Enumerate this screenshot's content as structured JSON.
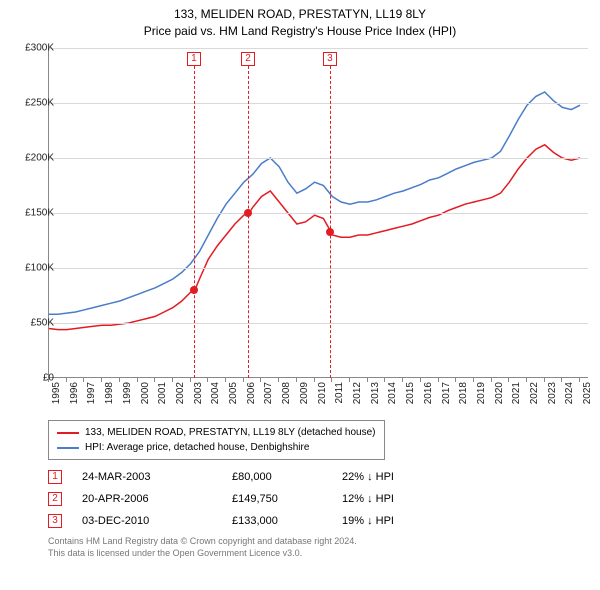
{
  "title": "133, MELIDEN ROAD, PRESTATYN, LL19 8LY",
  "subtitle": "Price paid vs. HM Land Registry's House Price Index (HPI)",
  "chart": {
    "type": "line",
    "background_color": "#ffffff",
    "grid_color": "#d9d9d9",
    "axis_color": "#888888",
    "ylim": [
      0,
      300000
    ],
    "ytick_step": 50000,
    "ytick_labels": [
      "£0",
      "£50K",
      "£100K",
      "£150K",
      "£200K",
      "£250K",
      "£300K"
    ],
    "xlim": [
      1995,
      2025.5
    ],
    "xtick_labels": [
      "1995",
      "1996",
      "1997",
      "1998",
      "1999",
      "2000",
      "2001",
      "2002",
      "2003",
      "2004",
      "2005",
      "2006",
      "2007",
      "2008",
      "2009",
      "2010",
      "2011",
      "2012",
      "2013",
      "2014",
      "2015",
      "2016",
      "2017",
      "2018",
      "2019",
      "2020",
      "2021",
      "2022",
      "2023",
      "2024",
      "2025"
    ],
    "label_fontsize": 10,
    "title_fontsize": 12,
    "series": [
      {
        "name": "property",
        "label": "133, MELIDEN ROAD, PRESTATYN, LL19 8LY (detached house)",
        "color": "#e31b23",
        "line_width": 1.5,
        "data": [
          [
            1995,
            45000
          ],
          [
            1995.5,
            44000
          ],
          [
            1996,
            44000
          ],
          [
            1996.5,
            45000
          ],
          [
            1997,
            46000
          ],
          [
            1997.5,
            47000
          ],
          [
            1998,
            48000
          ],
          [
            1998.5,
            48000
          ],
          [
            1999,
            49000
          ],
          [
            1999.5,
            50000
          ],
          [
            2000,
            52000
          ],
          [
            2000.5,
            54000
          ],
          [
            2001,
            56000
          ],
          [
            2001.5,
            60000
          ],
          [
            2002,
            64000
          ],
          [
            2002.5,
            70000
          ],
          [
            2003,
            78000
          ],
          [
            2003.24,
            80000
          ],
          [
            2003.5,
            90000
          ],
          [
            2004,
            108000
          ],
          [
            2004.5,
            120000
          ],
          [
            2005,
            130000
          ],
          [
            2005.5,
            140000
          ],
          [
            2006,
            148000
          ],
          [
            2006.3,
            149750
          ],
          [
            2006.5,
            155000
          ],
          [
            2007,
            165000
          ],
          [
            2007.5,
            170000
          ],
          [
            2008,
            160000
          ],
          [
            2008.5,
            150000
          ],
          [
            2009,
            140000
          ],
          [
            2009.5,
            142000
          ],
          [
            2010,
            148000
          ],
          [
            2010.5,
            145000
          ],
          [
            2010.92,
            133000
          ],
          [
            2011,
            130000
          ],
          [
            2011.5,
            128000
          ],
          [
            2012,
            128000
          ],
          [
            2012.5,
            130000
          ],
          [
            2013,
            130000
          ],
          [
            2013.5,
            132000
          ],
          [
            2014,
            134000
          ],
          [
            2014.5,
            136000
          ],
          [
            2015,
            138000
          ],
          [
            2015.5,
            140000
          ],
          [
            2016,
            143000
          ],
          [
            2016.5,
            146000
          ],
          [
            2017,
            148000
          ],
          [
            2017.5,
            152000
          ],
          [
            2018,
            155000
          ],
          [
            2018.5,
            158000
          ],
          [
            2019,
            160000
          ],
          [
            2019.5,
            162000
          ],
          [
            2020,
            164000
          ],
          [
            2020.5,
            168000
          ],
          [
            2021,
            178000
          ],
          [
            2021.5,
            190000
          ],
          [
            2022,
            200000
          ],
          [
            2022.5,
            208000
          ],
          [
            2023,
            212000
          ],
          [
            2023.5,
            205000
          ],
          [
            2024,
            200000
          ],
          [
            2024.5,
            198000
          ],
          [
            2025,
            200000
          ]
        ]
      },
      {
        "name": "hpi",
        "label": "HPI: Average price, detached house, Denbighshire",
        "color": "#4a7dc9",
        "line_width": 1.5,
        "data": [
          [
            1995,
            58000
          ],
          [
            1995.5,
            58000
          ],
          [
            1996,
            59000
          ],
          [
            1996.5,
            60000
          ],
          [
            1997,
            62000
          ],
          [
            1997.5,
            64000
          ],
          [
            1998,
            66000
          ],
          [
            1998.5,
            68000
          ],
          [
            1999,
            70000
          ],
          [
            1999.5,
            73000
          ],
          [
            2000,
            76000
          ],
          [
            2000.5,
            79000
          ],
          [
            2001,
            82000
          ],
          [
            2001.5,
            86000
          ],
          [
            2002,
            90000
          ],
          [
            2002.5,
            96000
          ],
          [
            2003,
            104000
          ],
          [
            2003.5,
            115000
          ],
          [
            2004,
            130000
          ],
          [
            2004.5,
            145000
          ],
          [
            2005,
            158000
          ],
          [
            2005.5,
            168000
          ],
          [
            2006,
            178000
          ],
          [
            2006.5,
            185000
          ],
          [
            2007,
            195000
          ],
          [
            2007.5,
            200000
          ],
          [
            2008,
            192000
          ],
          [
            2008.5,
            178000
          ],
          [
            2009,
            168000
          ],
          [
            2009.5,
            172000
          ],
          [
            2010,
            178000
          ],
          [
            2010.5,
            175000
          ],
          [
            2011,
            165000
          ],
          [
            2011.5,
            160000
          ],
          [
            2012,
            158000
          ],
          [
            2012.5,
            160000
          ],
          [
            2013,
            160000
          ],
          [
            2013.5,
            162000
          ],
          [
            2014,
            165000
          ],
          [
            2014.5,
            168000
          ],
          [
            2015,
            170000
          ],
          [
            2015.5,
            173000
          ],
          [
            2016,
            176000
          ],
          [
            2016.5,
            180000
          ],
          [
            2017,
            182000
          ],
          [
            2017.5,
            186000
          ],
          [
            2018,
            190000
          ],
          [
            2018.5,
            193000
          ],
          [
            2019,
            196000
          ],
          [
            2019.5,
            198000
          ],
          [
            2020,
            200000
          ],
          [
            2020.5,
            206000
          ],
          [
            2021,
            220000
          ],
          [
            2021.5,
            235000
          ],
          [
            2022,
            248000
          ],
          [
            2022.5,
            256000
          ],
          [
            2023,
            260000
          ],
          [
            2023.5,
            252000
          ],
          [
            2024,
            246000
          ],
          [
            2024.5,
            244000
          ],
          [
            2025,
            248000
          ]
        ]
      }
    ],
    "sale_markers": [
      {
        "num": "1",
        "year": 2003.24,
        "price": 80000,
        "color": "#e31b23"
      },
      {
        "num": "2",
        "year": 2006.3,
        "price": 149750,
        "color": "#e31b23"
      },
      {
        "num": "3",
        "year": 2010.92,
        "price": 133000,
        "color": "#e31b23"
      }
    ]
  },
  "legend": {
    "items": [
      {
        "color": "#e31b23",
        "label": "133, MELIDEN ROAD, PRESTATYN, LL19 8LY (detached house)"
      },
      {
        "color": "#4a7dc9",
        "label": "HPI: Average price, detached house, Denbighshire"
      }
    ]
  },
  "sales_table": {
    "rows": [
      {
        "num": "1",
        "color": "#e31b23",
        "date": "24-MAR-2003",
        "price": "£80,000",
        "diff": "22% ↓ HPI"
      },
      {
        "num": "2",
        "color": "#e31b23",
        "date": "20-APR-2006",
        "price": "£149,750",
        "diff": "12% ↓ HPI"
      },
      {
        "num": "3",
        "color": "#e31b23",
        "date": "03-DEC-2010",
        "price": "£133,000",
        "diff": "19% ↓ HPI"
      }
    ]
  },
  "attribution": {
    "line1": "Contains HM Land Registry data © Crown copyright and database right 2024.",
    "line2": "This data is licensed under the Open Government Licence v3.0."
  }
}
